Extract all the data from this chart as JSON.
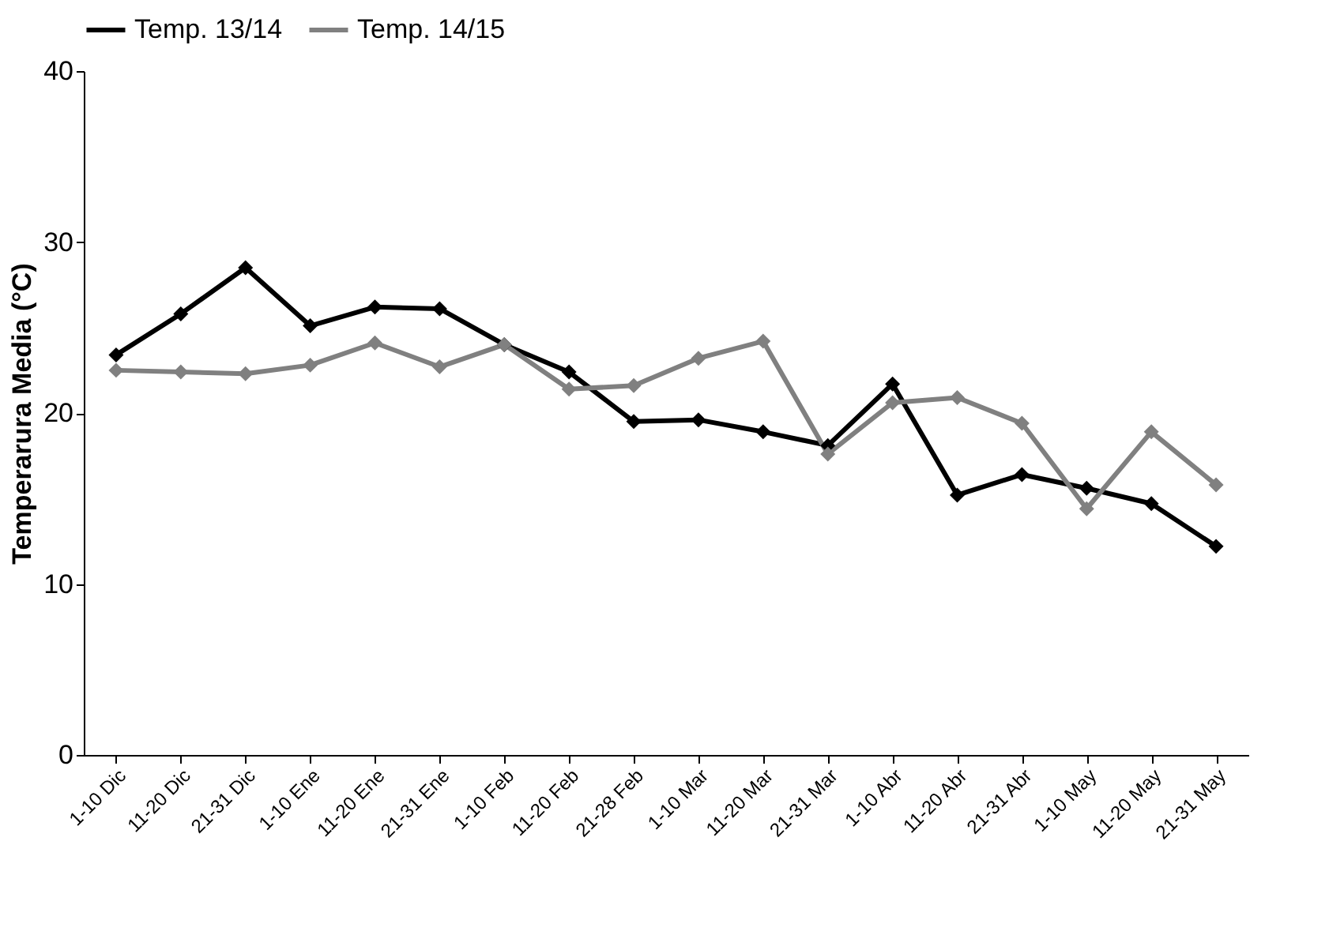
{
  "chart_data": {
    "type": "line",
    "ylabel": "Temperarura Media (°C)",
    "categories": [
      "1-10 Dic",
      "11-20 Dic",
      "21-31 Dic",
      "1-10 Ene",
      "11-20 Ene",
      "21-31 Ene",
      "1-10 Feb",
      "11-20 Feb",
      "21-28 Feb",
      "1-10 Mar",
      "11-20 Mar",
      "21-31 Mar",
      "1-10 Abr",
      "11-20 Abr",
      "21-31 Abr",
      "1-10 May",
      "11-20 May",
      "21-31 May"
    ],
    "series": [
      {
        "name": "Temp. 13/14",
        "color": "#000000",
        "values": [
          23.4,
          25.8,
          28.5,
          25.1,
          26.2,
          26.1,
          24.0,
          22.4,
          19.5,
          19.6,
          18.9,
          18.1,
          21.7,
          15.2,
          16.4,
          15.6,
          14.7,
          12.2
        ]
      },
      {
        "name": "Temp. 14/15",
        "color": "#808080",
        "values": [
          22.5,
          22.4,
          22.3,
          22.8,
          24.1,
          22.7,
          24.0,
          21.4,
          21.6,
          23.2,
          24.2,
          17.6,
          20.6,
          20.9,
          19.4,
          14.4,
          18.9,
          15.8
        ]
      }
    ],
    "ylim": [
      0,
      40
    ],
    "yticks": [
      0,
      10,
      20,
      30,
      40
    ],
    "grid": false,
    "legend": "top",
    "marker": "diamond",
    "line_style": "solid"
  }
}
